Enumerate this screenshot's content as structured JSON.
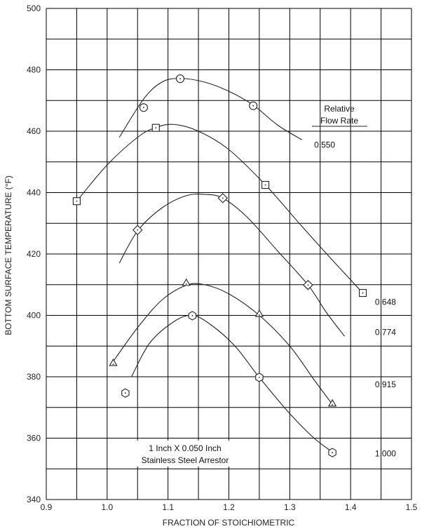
{
  "chart_data": {
    "type": "line",
    "title": "",
    "xlabel": "FRACTION OF STOICHIOMETRIC",
    "ylabel": "BOTTOM SURFACE TEMPERATURE (°F)",
    "xlim": [
      0.9,
      1.5
    ],
    "ylim": [
      340,
      500
    ],
    "x_major_ticks": [
      0.9,
      1.0,
      1.1,
      1.2,
      1.3,
      1.4,
      1.5
    ],
    "x_tick_labels": [
      "0.9",
      "1.0",
      "1.1",
      "1.2",
      "1.3",
      "1.4",
      "1.5"
    ],
    "y_major_ticks": [
      340,
      360,
      380,
      400,
      420,
      440,
      460,
      480,
      500
    ],
    "y_tick_labels": [
      "340",
      "360",
      "380",
      "400",
      "420",
      "440",
      "460",
      "480",
      "500"
    ],
    "grid_x_step": 0.05,
    "grid_y_step": 10,
    "grid": true,
    "legend_title_line1": "Relative",
    "legend_title_line2": "Flow Rate",
    "note_line1": "1 Inch X 0.050 Inch",
    "note_line2": "Stainless Steel Arrestor",
    "series": [
      {
        "name": "0.550",
        "marker": "circle",
        "points": [
          [
            1.06,
            467.7
          ],
          [
            1.12,
            477.1
          ],
          [
            1.24,
            468.3
          ]
        ],
        "curve": [
          [
            1.02,
            458
          ],
          [
            1.06,
            470.5
          ],
          [
            1.09,
            476
          ],
          [
            1.12,
            477.2
          ],
          [
            1.16,
            476
          ],
          [
            1.2,
            473
          ],
          [
            1.24,
            468.5
          ],
          [
            1.28,
            462
          ],
          [
            1.32,
            457.2
          ]
        ],
        "label_at": [
          1.34,
          455.5
        ]
      },
      {
        "name": "0.648",
        "marker": "square",
        "points": [
          [
            0.95,
            437.2
          ],
          [
            1.08,
            461.1
          ],
          [
            1.26,
            442.5
          ],
          [
            1.42,
            407.3
          ]
        ],
        "curve": [
          [
            0.95,
            437.2
          ],
          [
            1.0,
            449
          ],
          [
            1.05,
            458
          ],
          [
            1.08,
            461.2
          ],
          [
            1.11,
            462.2
          ],
          [
            1.15,
            460
          ],
          [
            1.2,
            454
          ],
          [
            1.26,
            442.5
          ],
          [
            1.32,
            429
          ],
          [
            1.37,
            418
          ],
          [
            1.42,
            407.3
          ]
        ],
        "label_at": [
          1.44,
          404.4
        ]
      },
      {
        "name": "0.774",
        "marker": "diamond",
        "points": [
          [
            1.05,
            427.8
          ],
          [
            1.19,
            438.2
          ],
          [
            1.33,
            409.9
          ]
        ],
        "curve": [
          [
            1.02,
            417
          ],
          [
            1.05,
            427.5
          ],
          [
            1.09,
            435
          ],
          [
            1.13,
            439
          ],
          [
            1.16,
            439.4
          ],
          [
            1.19,
            438.2
          ],
          [
            1.23,
            432
          ],
          [
            1.28,
            421
          ],
          [
            1.33,
            409.9
          ],
          [
            1.36,
            401
          ],
          [
            1.39,
            393.2
          ]
        ],
        "label_at": [
          1.44,
          394.5
        ]
      },
      {
        "name": "0.915",
        "marker": "triangle",
        "points": [
          [
            1.01,
            384.1
          ],
          [
            1.13,
            410.2
          ],
          [
            1.25,
            400.1
          ],
          [
            1.37,
            370.9
          ]
        ],
        "curve": [
          [
            1.01,
            385
          ],
          [
            1.05,
            396
          ],
          [
            1.09,
            405
          ],
          [
            1.13,
            409.8
          ],
          [
            1.16,
            410
          ],
          [
            1.2,
            407
          ],
          [
            1.25,
            400
          ],
          [
            1.3,
            390
          ],
          [
            1.34,
            379
          ],
          [
            1.37,
            371
          ]
        ],
        "label_at": [
          1.44,
          377.5
        ]
      },
      {
        "name": "1.000",
        "marker": "hexagon",
        "points": [
          [
            1.03,
            374.7
          ],
          [
            1.14,
            399.9
          ],
          [
            1.25,
            379.8
          ],
          [
            1.37,
            355.3
          ]
        ],
        "curve": [
          [
            1.04,
            380
          ],
          [
            1.07,
            391
          ],
          [
            1.11,
            398
          ],
          [
            1.14,
            400
          ],
          [
            1.17,
            397
          ],
          [
            1.21,
            390
          ],
          [
            1.25,
            379.8
          ],
          [
            1.3,
            368
          ],
          [
            1.34,
            360
          ],
          [
            1.37,
            355.5
          ]
        ],
        "label_at": [
          1.44,
          355
        ]
      }
    ]
  }
}
